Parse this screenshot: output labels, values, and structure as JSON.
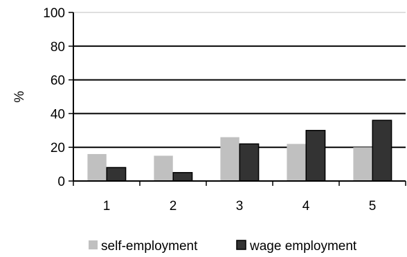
{
  "chart_data": {
    "type": "bar",
    "title": "",
    "xlabel": "",
    "ylabel": "%",
    "ylim": [
      0,
      100
    ],
    "yticks": [
      0,
      20,
      40,
      60,
      80,
      100
    ],
    "grid": true,
    "legend_position": "bottom",
    "categories": [
      "1",
      "2",
      "3",
      "4",
      "5"
    ],
    "series": [
      {
        "name": "self-employment",
        "color": "#c0c0c0",
        "values": [
          16,
          15,
          26,
          22,
          20
        ]
      },
      {
        "name": "wage employment",
        "color": "#333333",
        "values": [
          8,
          5,
          22,
          30,
          36
        ]
      }
    ]
  }
}
